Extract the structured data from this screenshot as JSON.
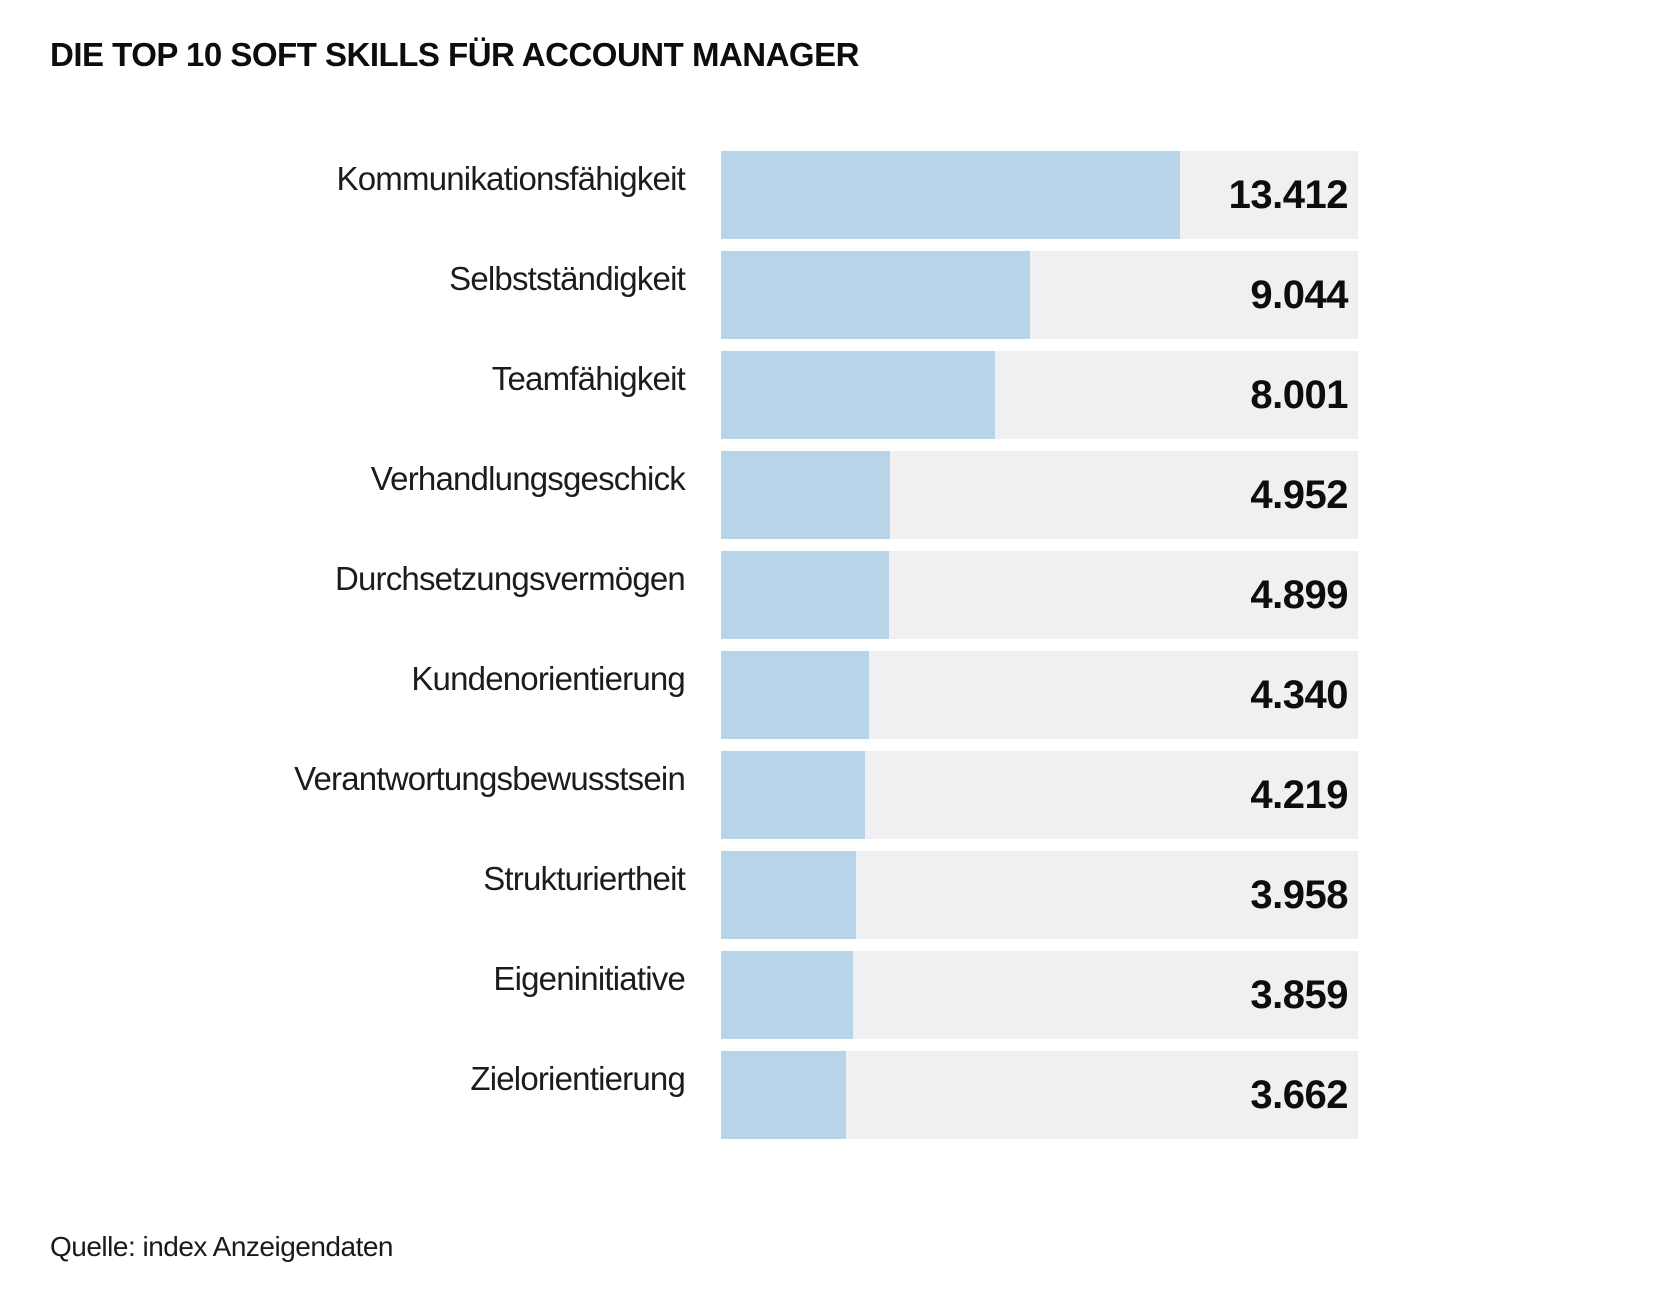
{
  "title": "DIE TOP 10 SOFT SKILLS FÜR ACCOUNT MANAGER",
  "source": "Quelle: index Anzeigendaten",
  "colors": {
    "bar": "#b8d4e9",
    "track": "#f0f0f2",
    "text": "#1a1a1a"
  },
  "chart_data": {
    "type": "bar",
    "orientation": "horizontal",
    "title": "DIE TOP 10 SOFT SKILLS FÜR ACCOUNT MANAGER",
    "categories": [
      "Kommunikationsfähigkeit",
      "Selbstständigkeit",
      "Teamfähigkeit",
      "Verhandlungsgeschick",
      "Durchsetzungsvermögen",
      "Kundenorientierung",
      "Verantwortungsbewusstsein",
      "Strukturiertheit",
      "Eigeninitiative",
      "Zielorientierung"
    ],
    "values": [
      13412,
      9044,
      8001,
      4952,
      4899,
      4340,
      4219,
      3958,
      3859,
      3662
    ],
    "value_labels": [
      "13.412",
      "9.044",
      "8.001",
      "4.952",
      "4.899",
      "4.340",
      "4.219",
      "3.958",
      "3.859",
      "3.662"
    ],
    "xlabel": "",
    "ylabel": "",
    "xlim": [
      0,
      18620
    ],
    "grid": false,
    "legend": false,
    "value_labels_position": "right-inside-track",
    "source": "Quelle: index Anzeigendaten"
  }
}
